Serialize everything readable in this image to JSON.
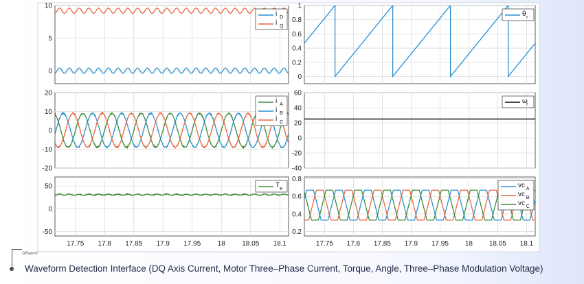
{
  "caption": "Waveform Detection Interface (DQ Axis Current, Motor Three–Phase Current, Torque, Angle, Three–Phase Modulation Voltage)",
  "offset_label": "Offset=0",
  "colors": {
    "blue": "#2a8fd0",
    "orange": "#e8643c",
    "green": "#3e8a3a",
    "black": "#111111",
    "grid": "#dcdcdc",
    "axis": "#333333"
  },
  "x_ticks": [
    "17.75",
    "17.8",
    "17.85",
    "17.9",
    "17.95",
    "18",
    "18.05",
    "18.1"
  ],
  "chart_data": [
    {
      "type": "line",
      "panel": "top-left",
      "xlim": [
        17.715,
        18.115
      ],
      "ylim": [
        -2,
        10
      ],
      "y_ticks": [
        "10",
        "5",
        "0"
      ],
      "grid": true,
      "legend_position": "top-right",
      "series": [
        {
          "name": "i",
          "legend_sub": "D",
          "color": "blue",
          "kind": "dc_ripple",
          "value": 0.0,
          "ripple": 0.4
        },
        {
          "name": "i",
          "legend_sub": "Q",
          "color": "orange",
          "kind": "dc_ripple",
          "value": 9.2,
          "ripple": 0.4
        }
      ]
    },
    {
      "type": "line",
      "panel": "top-right",
      "xlim": [
        17.715,
        18.115
      ],
      "ylim": [
        -0.1,
        1.0
      ],
      "y_ticks": [
        "1",
        "0.8",
        "0.6",
        "0.4",
        "0.2",
        "0"
      ],
      "grid": true,
      "legend_position": "top-right",
      "series": [
        {
          "name": "θ",
          "legend_sub": "r",
          "color": "blue",
          "kind": "sawtooth",
          "period": 0.1,
          "reset_x": 17.768,
          "min": 0,
          "max": 1
        }
      ]
    },
    {
      "type": "line",
      "panel": "middle-left",
      "xlim": [
        17.715,
        18.115
      ],
      "ylim": [
        -20,
        20
      ],
      "y_ticks": [
        "20",
        "10",
        "0",
        "-10",
        "-20"
      ],
      "grid": true,
      "legend_position": "top-right",
      "series": [
        {
          "name": "i",
          "legend_sub": "A",
          "color": "green",
          "kind": "sine",
          "amplitude": 9,
          "period": 0.05,
          "phase_deg": 0
        },
        {
          "name": "i",
          "legend_sub": "B",
          "color": "blue",
          "kind": "sine",
          "amplitude": 9,
          "period": 0.05,
          "phase_deg": -120
        },
        {
          "name": "i",
          "legend_sub": "C",
          "color": "orange",
          "kind": "sine",
          "amplitude": 9,
          "period": 0.05,
          "phase_deg": 120
        }
      ]
    },
    {
      "type": "line",
      "panel": "middle-right",
      "xlim": [
        17.715,
        18.115
      ],
      "ylim": [
        -40,
        60
      ],
      "y_ticks": [
        "60",
        "40",
        "20",
        "0",
        "-20",
        "-40"
      ],
      "grid": true,
      "legend_position": "top-right",
      "series": [
        {
          "name": "ω",
          "legend_sub": "r",
          "color": "black",
          "kind": "constant",
          "value": 25
        }
      ]
    },
    {
      "type": "line",
      "panel": "bottom-left",
      "xlim": [
        17.715,
        18.115
      ],
      "ylim": [
        -60,
        70
      ],
      "y_ticks": [
        "50",
        "0",
        "-50"
      ],
      "grid": true,
      "legend_position": "top-right",
      "series": [
        {
          "name": "T",
          "legend_sub": "e",
          "color": "green",
          "kind": "dc_ripple",
          "value": 31,
          "ripple": 1.2
        }
      ]
    },
    {
      "type": "line",
      "panel": "bottom-right",
      "xlim": [
        17.715,
        18.115
      ],
      "ylim": [
        0.15,
        0.82
      ],
      "y_ticks": [
        "0.8",
        "0.6",
        "0.4",
        "0.2"
      ],
      "grid": true,
      "legend_position": "top-right",
      "series": [
        {
          "name": "vc",
          "legend_sub": "A",
          "color": "blue",
          "kind": "clipped_triangle",
          "period": 0.05,
          "phase_deg": 0,
          "center": 0.5,
          "amplitude": 0.24,
          "clip": 0.17
        },
        {
          "name": "vc",
          "legend_sub": "B",
          "color": "orange",
          "kind": "clipped_triangle",
          "period": 0.05,
          "phase_deg": -120,
          "center": 0.5,
          "amplitude": 0.24,
          "clip": 0.17
        },
        {
          "name": "vc",
          "legend_sub": "C",
          "color": "green",
          "kind": "clipped_triangle",
          "period": 0.05,
          "phase_deg": 120,
          "center": 0.5,
          "amplitude": 0.24,
          "clip": 0.17
        }
      ]
    }
  ]
}
